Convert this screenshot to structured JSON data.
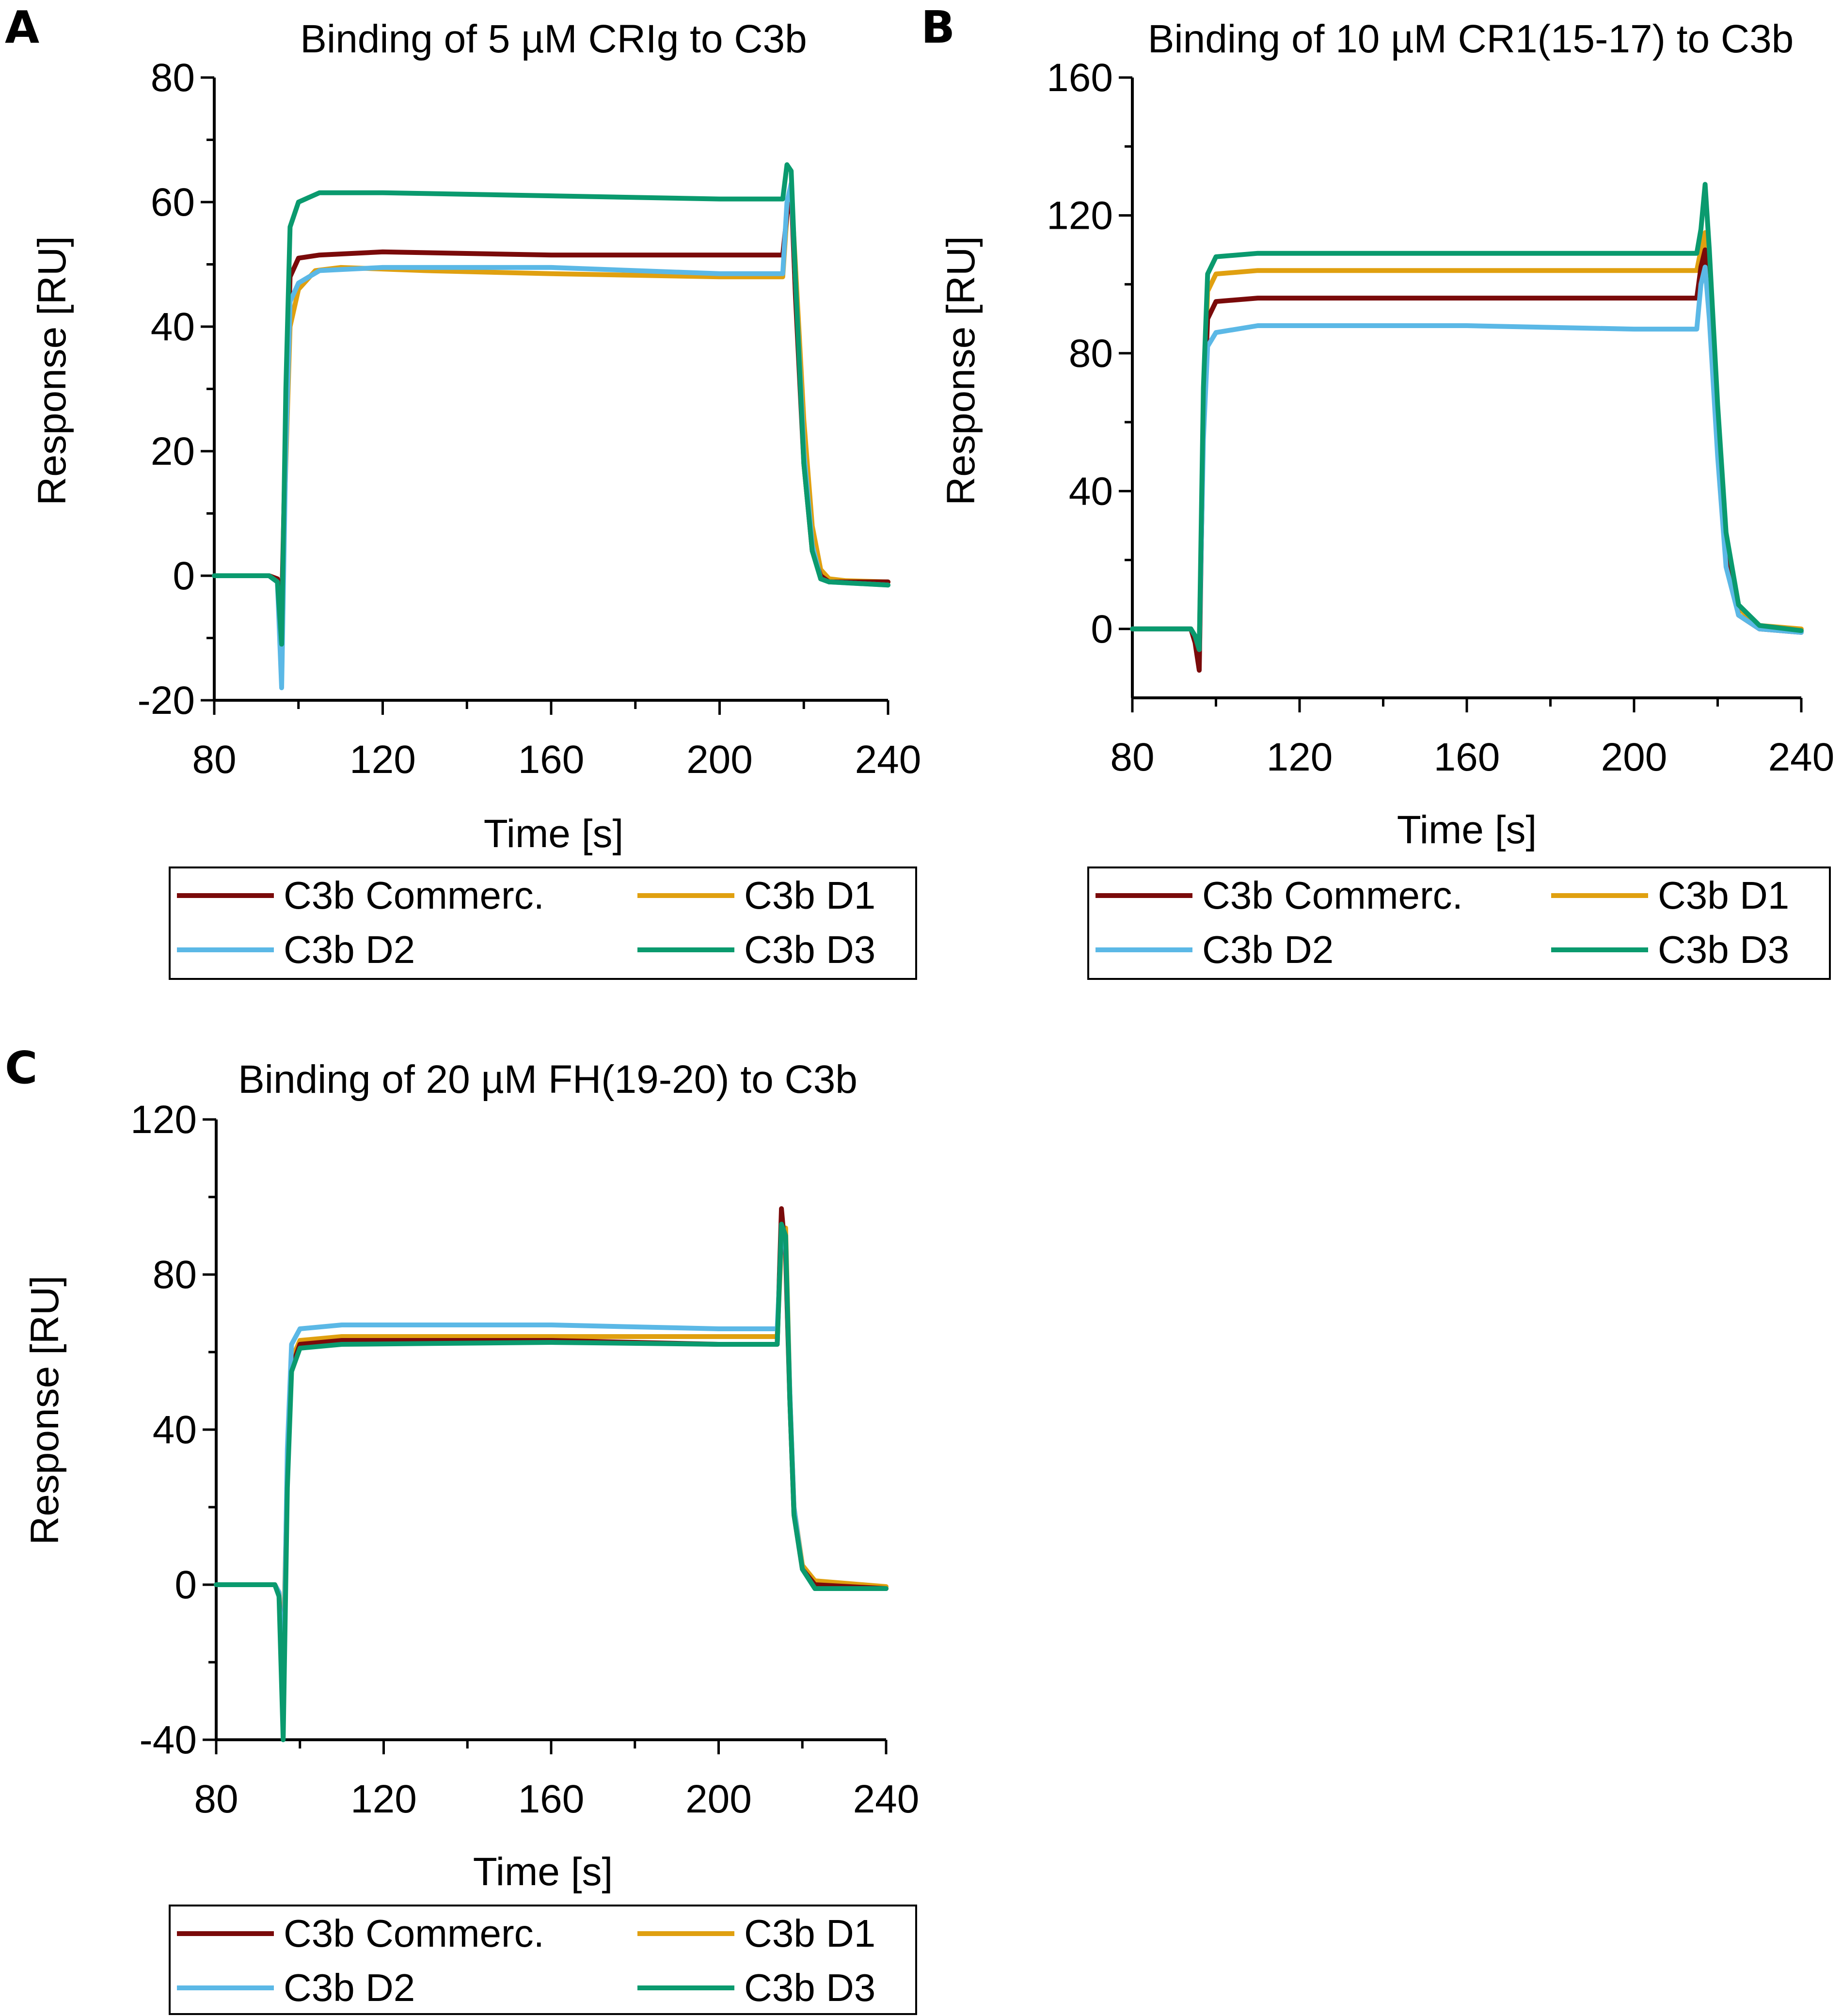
{
  "series_colors": {
    "C3b Commerc.": "#7a0a0a",
    "C3b D1": "#e0a010",
    "C3b D2": "#5bb8e6",
    "C3b D3": "#0a9a6e"
  },
  "chart_data": [
    {
      "type": "line",
      "panel": "A",
      "title": "Binding of 5 µM CRIg to C3b",
      "xlabel": "Time [s]",
      "ylabel": "Response [RU]",
      "xlim": [
        80,
        240
      ],
      "ylim": [
        -20,
        80
      ],
      "xticks": [
        80,
        120,
        160,
        200,
        240
      ],
      "yticks": [
        -20,
        0,
        20,
        40,
        60,
        80
      ],
      "legend": [
        "C3b Commerc.",
        "C3b D1",
        "C3b D2",
        "C3b D3"
      ],
      "series": [
        {
          "name": "C3b D1",
          "points": [
            [
              80,
              0
            ],
            [
              93,
              0
            ],
            [
              95,
              -0.5
            ],
            [
              96,
              -5
            ],
            [
              97,
              18
            ],
            [
              98,
              40
            ],
            [
              100,
              46
            ],
            [
              104,
              49
            ],
            [
              110,
              49.5
            ],
            [
              130,
              49
            ],
            [
              160,
              48.5
            ],
            [
              200,
              48
            ],
            [
              215,
              48
            ],
            [
              216,
              58
            ],
            [
              217,
              62
            ],
            [
              218,
              50
            ],
            [
              220,
              25
            ],
            [
              222,
              8
            ],
            [
              224,
              1
            ],
            [
              226,
              -0.5
            ],
            [
              230,
              -0.8
            ],
            [
              240,
              -1
            ]
          ]
        },
        {
          "name": "C3b Commerc.",
          "points": [
            [
              80,
              0
            ],
            [
              93,
              0
            ],
            [
              95,
              -0.5
            ],
            [
              96,
              -6
            ],
            [
              97,
              25
            ],
            [
              98,
              48
            ],
            [
              100,
              51
            ],
            [
              105,
              51.5
            ],
            [
              120,
              52
            ],
            [
              160,
              51.5
            ],
            [
              200,
              51.5
            ],
            [
              215,
              51.5
            ],
            [
              216,
              58
            ],
            [
              217,
              62
            ],
            [
              218,
              45
            ],
            [
              220,
              18
            ],
            [
              222,
              4
            ],
            [
              224,
              0
            ],
            [
              226,
              -1
            ],
            [
              240,
              -1
            ]
          ]
        },
        {
          "name": "C3b D2",
          "points": [
            [
              80,
              0
            ],
            [
              93,
              0
            ],
            [
              95,
              -1
            ],
            [
              96,
              -18
            ],
            [
              97,
              20
            ],
            [
              98,
              44
            ],
            [
              100,
              47
            ],
            [
              105,
              49
            ],
            [
              120,
              49.5
            ],
            [
              160,
              49.5
            ],
            [
              200,
              48.5
            ],
            [
              215,
              48.5
            ],
            [
              216,
              60
            ],
            [
              217,
              63
            ],
            [
              218,
              48
            ],
            [
              220,
              20
            ],
            [
              222,
              5
            ],
            [
              224,
              -0.5
            ],
            [
              226,
              -1
            ],
            [
              240,
              -1.5
            ]
          ]
        },
        {
          "name": "C3b D3",
          "points": [
            [
              80,
              0
            ],
            [
              93,
              0
            ],
            [
              95,
              -1
            ],
            [
              96,
              -11
            ],
            [
              97,
              30
            ],
            [
              98,
              56
            ],
            [
              100,
              60
            ],
            [
              105,
              61.5
            ],
            [
              120,
              61.5
            ],
            [
              160,
              61
            ],
            [
              200,
              60.5
            ],
            [
              215,
              60.5
            ],
            [
              216,
              66
            ],
            [
              217,
              65
            ],
            [
              218,
              48
            ],
            [
              220,
              18
            ],
            [
              222,
              4
            ],
            [
              224,
              -0.5
            ],
            [
              226,
              -1
            ],
            [
              240,
              -1.5
            ]
          ]
        }
      ]
    },
    {
      "type": "line",
      "panel": "B",
      "title": "Binding of 10 µM CR1(15-17) to C3b",
      "xlabel": "Time [s]",
      "ylabel": "Response [RU]",
      "xlim": [
        80,
        240
      ],
      "ylim": [
        -20,
        160
      ],
      "xticks": [
        80,
        120,
        160,
        200,
        240
      ],
      "yticks": [
        0,
        40,
        80,
        120,
        160
      ],
      "legend": [
        "C3b Commerc.",
        "C3b D1",
        "C3b D2",
        "C3b D3"
      ],
      "series": [
        {
          "name": "C3b D1",
          "points": [
            [
              80,
              0
            ],
            [
              94,
              0
            ],
            [
              95,
              -2
            ],
            [
              96,
              -6
            ],
            [
              97,
              60
            ],
            [
              98,
              98
            ],
            [
              100,
              103
            ],
            [
              110,
              104
            ],
            [
              160,
              104
            ],
            [
              200,
              104
            ],
            [
              215,
              104
            ],
            [
              216,
              110
            ],
            [
              217,
              115
            ],
            [
              218,
              100
            ],
            [
              220,
              60
            ],
            [
              222,
              25
            ],
            [
              225,
              6
            ],
            [
              230,
              1
            ],
            [
              240,
              0
            ]
          ]
        },
        {
          "name": "C3b Commerc.",
          "points": [
            [
              80,
              0
            ],
            [
              94,
              0
            ],
            [
              95,
              -4
            ],
            [
              96,
              -12
            ],
            [
              97,
              60
            ],
            [
              98,
              90
            ],
            [
              100,
              95
            ],
            [
              110,
              96
            ],
            [
              160,
              96
            ],
            [
              200,
              96
            ],
            [
              215,
              96
            ],
            [
              216,
              105
            ],
            [
              217,
              110
            ],
            [
              218,
              95
            ],
            [
              220,
              55
            ],
            [
              222,
              20
            ],
            [
              225,
              4
            ],
            [
              230,
              0
            ],
            [
              240,
              -1
            ]
          ]
        },
        {
          "name": "C3b D2",
          "points": [
            [
              80,
              0
            ],
            [
              94,
              0
            ],
            [
              95,
              -2
            ],
            [
              96,
              -6
            ],
            [
              97,
              55
            ],
            [
              98,
              82
            ],
            [
              100,
              86
            ],
            [
              110,
              88
            ],
            [
              160,
              88
            ],
            [
              200,
              87
            ],
            [
              215,
              87
            ],
            [
              216,
              100
            ],
            [
              217,
              105
            ],
            [
              218,
              90
            ],
            [
              220,
              50
            ],
            [
              222,
              18
            ],
            [
              225,
              4
            ],
            [
              230,
              0
            ],
            [
              240,
              -1
            ]
          ]
        },
        {
          "name": "C3b D3",
          "points": [
            [
              80,
              0
            ],
            [
              94,
              0
            ],
            [
              95,
              -2
            ],
            [
              96,
              -6
            ],
            [
              97,
              70
            ],
            [
              98,
              103
            ],
            [
              100,
              108
            ],
            [
              110,
              109
            ],
            [
              160,
              109
            ],
            [
              200,
              109
            ],
            [
              215,
              109
            ],
            [
              216,
              116
            ],
            [
              217,
              129
            ],
            [
              218,
              110
            ],
            [
              220,
              65
            ],
            [
              222,
              28
            ],
            [
              225,
              7
            ],
            [
              230,
              1
            ],
            [
              240,
              -0.5
            ]
          ]
        }
      ]
    },
    {
      "type": "line",
      "panel": "C",
      "title": "Binding of 20 µM FH(19-20) to C3b",
      "xlabel": "Time [s]",
      "ylabel": "Response [RU]",
      "xlim": [
        80,
        240
      ],
      "ylim": [
        -40,
        120
      ],
      "xticks": [
        80,
        120,
        160,
        200,
        240
      ],
      "yticks": [
        -40,
        0,
        40,
        80,
        120
      ],
      "legend": [
        "C3b Commerc.",
        "C3b D1",
        "C3b D2",
        "C3b D3"
      ],
      "series": [
        {
          "name": "C3b D1",
          "points": [
            [
              80,
              0
            ],
            [
              94,
              0
            ],
            [
              95,
              -2
            ],
            [
              96,
              -20
            ],
            [
              97,
              30
            ],
            [
              98,
              58
            ],
            [
              100,
              63
            ],
            [
              110,
              64
            ],
            [
              160,
              64
            ],
            [
              200,
              64
            ],
            [
              214,
              64
            ],
            [
              215,
              88
            ],
            [
              216,
              92
            ],
            [
              217,
              50
            ],
            [
              218,
              20
            ],
            [
              220,
              5
            ],
            [
              223,
              1
            ],
            [
              240,
              -0.5
            ]
          ]
        },
        {
          "name": "C3b Commerc.",
          "points": [
            [
              80,
              0
            ],
            [
              94,
              0
            ],
            [
              95,
              -2
            ],
            [
              96,
              -25
            ],
            [
              97,
              28
            ],
            [
              98,
              56
            ],
            [
              100,
              62
            ],
            [
              110,
              63
            ],
            [
              160,
              63
            ],
            [
              200,
              62
            ],
            [
              214,
              62
            ],
            [
              215,
              97
            ],
            [
              216,
              85
            ],
            [
              217,
              48
            ],
            [
              218,
              18
            ],
            [
              220,
              4
            ],
            [
              223,
              0
            ],
            [
              240,
              -1
            ]
          ]
        },
        {
          "name": "C3b D2",
          "points": [
            [
              80,
              0
            ],
            [
              94,
              0
            ],
            [
              95,
              -2
            ],
            [
              96,
              -30
            ],
            [
              97,
              35
            ],
            [
              98,
              62
            ],
            [
              100,
              66
            ],
            [
              110,
              67
            ],
            [
              160,
              67
            ],
            [
              200,
              66
            ],
            [
              214,
              66
            ],
            [
              215,
              90
            ],
            [
              216,
              88
            ],
            [
              217,
              50
            ],
            [
              218,
              20
            ],
            [
              220,
              4
            ],
            [
              223,
              -1
            ],
            [
              240,
              -1
            ]
          ]
        },
        {
          "name": "C3b D3",
          "points": [
            [
              80,
              0
            ],
            [
              94,
              0
            ],
            [
              95,
              -3
            ],
            [
              96,
              -40
            ],
            [
              97,
              25
            ],
            [
              98,
              55
            ],
            [
              100,
              61
            ],
            [
              110,
              62
            ],
            [
              160,
              62.5
            ],
            [
              200,
              62
            ],
            [
              214,
              62
            ],
            [
              215,
              93
            ],
            [
              216,
              90
            ],
            [
              217,
              48
            ],
            [
              218,
              18
            ],
            [
              220,
              4
            ],
            [
              223,
              -1
            ],
            [
              240,
              -1
            ]
          ]
        }
      ]
    }
  ]
}
